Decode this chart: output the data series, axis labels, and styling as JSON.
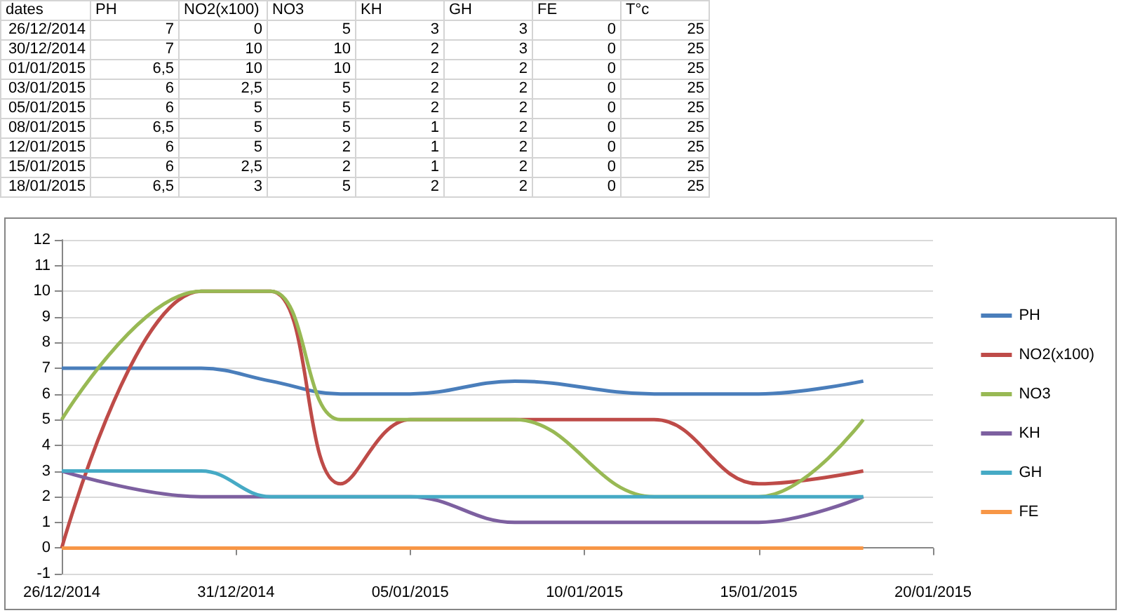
{
  "chart_data": [
    {
      "type": "other",
      "data_labels": true,
      "xlabel": "dates",
      "categories": [
        "26/12/2014",
        "30/12/2014",
        "01/01/2015",
        "03/01/2015",
        "05/01/2015",
        "08/01/2015",
        "12/01/2015",
        "15/01/2015",
        "18/01/2015"
      ],
      "series": [
        {
          "name": "PH",
          "values": [
            7,
            7,
            6.5,
            6,
            6,
            6.5,
            6,
            6,
            6.5
          ],
          "value_labels": [
            "7",
            "7",
            "6,5",
            "6",
            "6",
            "6,5",
            "6",
            "6",
            "6,5"
          ]
        },
        {
          "name": "NO2(x100)",
          "values": [
            0,
            10,
            10,
            2.5,
            5,
            5,
            5,
            2.5,
            3
          ],
          "value_labels": [
            "0",
            "10",
            "10",
            "2,5",
            "5",
            "5",
            "5",
            "2,5",
            "3"
          ]
        },
        {
          "name": "NO3",
          "values": [
            5,
            10,
            10,
            5,
            5,
            5,
            2,
            2,
            5
          ]
        },
        {
          "name": "KH",
          "values": [
            3,
            2,
            2,
            2,
            2,
            1,
            1,
            1,
            2
          ]
        },
        {
          "name": "GH",
          "values": [
            3,
            3,
            2,
            2,
            2,
            2,
            2,
            2,
            2
          ]
        },
        {
          "name": "FE",
          "values": [
            0,
            0,
            0,
            0,
            0,
            0,
            0,
            0,
            0
          ]
        },
        {
          "name": "T°c",
          "values": [
            25,
            25,
            25,
            25,
            25,
            25,
            25,
            25,
            25
          ]
        }
      ]
    },
    {
      "type": "line",
      "x": [
        "2014-12-26",
        "2014-12-30",
        "2015-01-01",
        "2015-01-03",
        "2015-01-05",
        "2015-01-08",
        "2015-01-12",
        "2015-01-15",
        "2015-01-18"
      ],
      "series": [
        {
          "name": "PH",
          "color": "#4a7ebb",
          "values": [
            7,
            7,
            6.5,
            6,
            6,
            6.5,
            6,
            6,
            6.5
          ]
        },
        {
          "name": "NO2(x100)",
          "color": "#be4b48",
          "values": [
            0,
            10,
            10,
            2.5,
            5,
            5,
            5,
            2.5,
            3
          ]
        },
        {
          "name": "NO3",
          "color": "#98b954",
          "values": [
            5,
            10,
            10,
            5,
            5,
            5,
            2,
            2,
            5
          ]
        },
        {
          "name": "KH",
          "color": "#7d60a0",
          "values": [
            3,
            2,
            2,
            2,
            2,
            1,
            1,
            1,
            2
          ]
        },
        {
          "name": "GH",
          "color": "#46aac5",
          "values": [
            3,
            3,
            2,
            2,
            2,
            2,
            2,
            2,
            2
          ]
        },
        {
          "name": "FE",
          "color": "#f79646",
          "values": [
            0,
            0,
            0,
            0,
            0,
            0,
            0,
            0,
            0
          ]
        }
      ],
      "xlim": [
        "2014-12-26",
        "2015-01-20"
      ],
      "xticks": [
        {
          "value": "2014-12-26",
          "label": "26/12/2014"
        },
        {
          "value": "2014-12-31",
          "label": "31/12/2014"
        },
        {
          "value": "2015-01-05",
          "label": "05/01/2015"
        },
        {
          "value": "2015-01-10",
          "label": "10/01/2015"
        },
        {
          "value": "2015-01-15",
          "label": "15/01/2015"
        },
        {
          "value": "2015-01-20",
          "label": "20/01/2015"
        }
      ],
      "ylim": [
        -1,
        12
      ],
      "yticks": [
        -1,
        0,
        1,
        2,
        3,
        4,
        5,
        6,
        7,
        8,
        9,
        10,
        11,
        12
      ],
      "grid": "y",
      "legend": "right",
      "marker": "none"
    }
  ]
}
